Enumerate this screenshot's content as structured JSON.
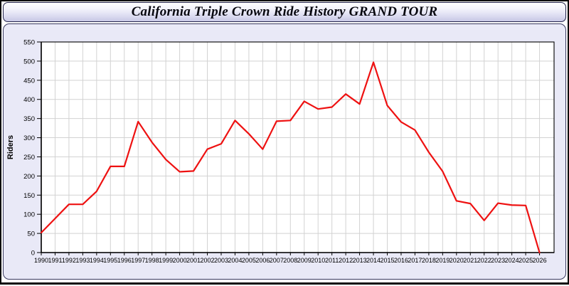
{
  "header": {
    "title": "California Triple Crown Ride History GRAND TOUR"
  },
  "colors": {
    "line": "#ee1111",
    "panel_background": "#e9e9f7",
    "plot_background": "#ffffff",
    "gridline": "#d2d2d2",
    "axis": "#000000"
  },
  "chart_data": {
    "type": "line",
    "title": "California Triple Crown Ride History GRAND TOUR",
    "xlabel": "",
    "ylabel": "Riders",
    "x": [
      1990,
      1991,
      1992,
      1993,
      1994,
      1995,
      1996,
      1997,
      1998,
      1999,
      2000,
      2001,
      2002,
      2003,
      2004,
      2005,
      2006,
      2007,
      2008,
      2009,
      2010,
      2011,
      2012,
      2013,
      2014,
      2015,
      2016,
      2017,
      2018,
      2019,
      2020,
      2021,
      2022,
      2023,
      2024,
      2025,
      2026
    ],
    "series": [
      {
        "name": "Riders",
        "color": "#ee1111",
        "values": [
          52,
          89,
          126,
          126,
          160,
          225,
          225,
          342,
          288,
          243,
          211,
          213,
          270,
          284,
          345,
          310,
          270,
          343,
          345,
          395,
          375,
          380,
          414,
          388,
          497,
          384,
          341,
          320,
          262,
          212,
          135,
          128,
          84,
          129,
          124,
          123,
          0
        ]
      }
    ],
    "ylim": [
      0,
      550
    ],
    "ytick_step": 50,
    "yticks": [
      0,
      50,
      100,
      150,
      200,
      250,
      300,
      350,
      400,
      450,
      500,
      550
    ],
    "grid": true,
    "legend_position": "none"
  }
}
